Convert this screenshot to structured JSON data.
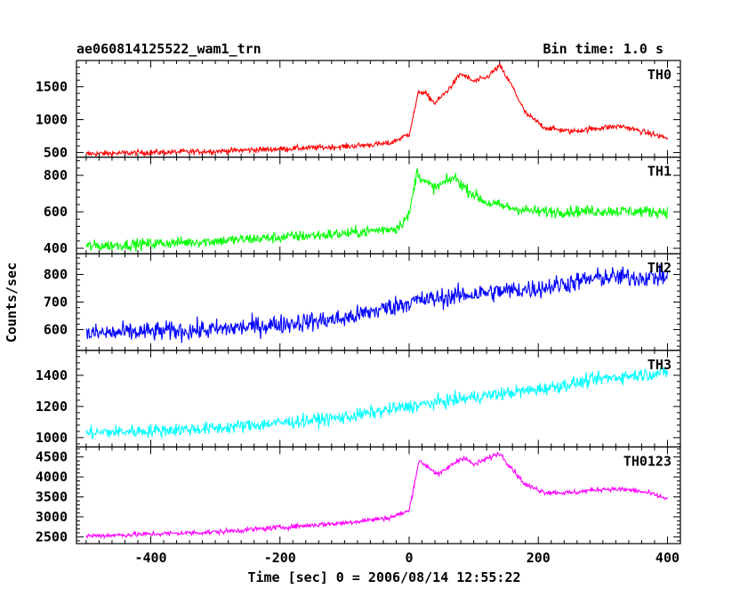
{
  "chart_data": {
    "type": "line",
    "title_left": "ae060814125522_wam1_trn",
    "title_right": "Bin time: 1.0 s",
    "xlabel": "Time [sec] 0 = 2006/08/14 12:55:22",
    "ylabel": "Counts/sec",
    "xlim": [
      -515,
      420
    ],
    "xticks": [
      -400,
      -200,
      0,
      200,
      400
    ],
    "x_start": -500,
    "x_end": 400,
    "panels": [
      {
        "name": "TH0",
        "color": "#ff0000",
        "ylim": [
          430,
          1900
        ],
        "yticks": [
          500,
          1000,
          1500
        ],
        "noise": 30,
        "curve": [
          [
            -500,
            480
          ],
          [
            -300,
            520
          ],
          [
            -100,
            590
          ],
          [
            -30,
            640
          ],
          [
            0,
            780
          ],
          [
            15,
            1430
          ],
          [
            25,
            1400
          ],
          [
            40,
            1250
          ],
          [
            60,
            1450
          ],
          [
            80,
            1700
          ],
          [
            100,
            1580
          ],
          [
            120,
            1640
          ],
          [
            140,
            1820
          ],
          [
            160,
            1500
          ],
          [
            180,
            1100
          ],
          [
            210,
            880
          ],
          [
            250,
            820
          ],
          [
            300,
            880
          ],
          [
            330,
            900
          ],
          [
            360,
            820
          ],
          [
            400,
            720
          ]
        ]
      },
      {
        "name": "TH1",
        "color": "#00ff00",
        "ylim": [
          370,
          900
        ],
        "yticks": [
          400,
          600,
          800
        ],
        "noise": 22,
        "curve": [
          [
            -500,
            410
          ],
          [
            -300,
            440
          ],
          [
            -100,
            480
          ],
          [
            -20,
            510
          ],
          [
            0,
            580
          ],
          [
            12,
            820
          ],
          [
            25,
            760
          ],
          [
            40,
            730
          ],
          [
            70,
            790
          ],
          [
            90,
            720
          ],
          [
            120,
            650
          ],
          [
            160,
            620
          ],
          [
            200,
            600
          ],
          [
            300,
            605
          ],
          [
            400,
            600
          ]
        ]
      },
      {
        "name": "TH2",
        "color": "#0000ff",
        "ylim": [
          525,
          875
        ],
        "yticks": [
          600,
          700,
          800
        ],
        "noise": 25,
        "curve": [
          [
            -500,
            585
          ],
          [
            -300,
            600
          ],
          [
            -100,
            640
          ],
          [
            0,
            700
          ],
          [
            100,
            730
          ],
          [
            200,
            750
          ],
          [
            300,
            790
          ],
          [
            400,
            790
          ]
        ]
      },
      {
        "name": "TH3",
        "color": "#00ffff",
        "ylim": [
          940,
          1560
        ],
        "yticks": [
          1000,
          1200,
          1400
        ],
        "noise": 30,
        "curve": [
          [
            -500,
            1030
          ],
          [
            -300,
            1060
          ],
          [
            -100,
            1130
          ],
          [
            0,
            1200
          ],
          [
            100,
            1260
          ],
          [
            200,
            1310
          ],
          [
            300,
            1380
          ],
          [
            400,
            1420
          ]
        ]
      },
      {
        "name": "TH0123",
        "color": "#ff00ff",
        "ylim": [
          2330,
          4750
        ],
        "yticks": [
          2500,
          3000,
          3500,
          4000,
          4500
        ],
        "noise": 45,
        "curve": [
          [
            -500,
            2520
          ],
          [
            -300,
            2620
          ],
          [
            -100,
            2850
          ],
          [
            -30,
            2980
          ],
          [
            0,
            3150
          ],
          [
            15,
            4400
          ],
          [
            30,
            4250
          ],
          [
            45,
            4050
          ],
          [
            70,
            4350
          ],
          [
            85,
            4500
          ],
          [
            100,
            4300
          ],
          [
            120,
            4450
          ],
          [
            140,
            4600
          ],
          [
            160,
            4200
          ],
          [
            180,
            3800
          ],
          [
            210,
            3620
          ],
          [
            250,
            3600
          ],
          [
            300,
            3700
          ],
          [
            340,
            3680
          ],
          [
            370,
            3600
          ],
          [
            400,
            3450
          ]
        ]
      }
    ]
  }
}
